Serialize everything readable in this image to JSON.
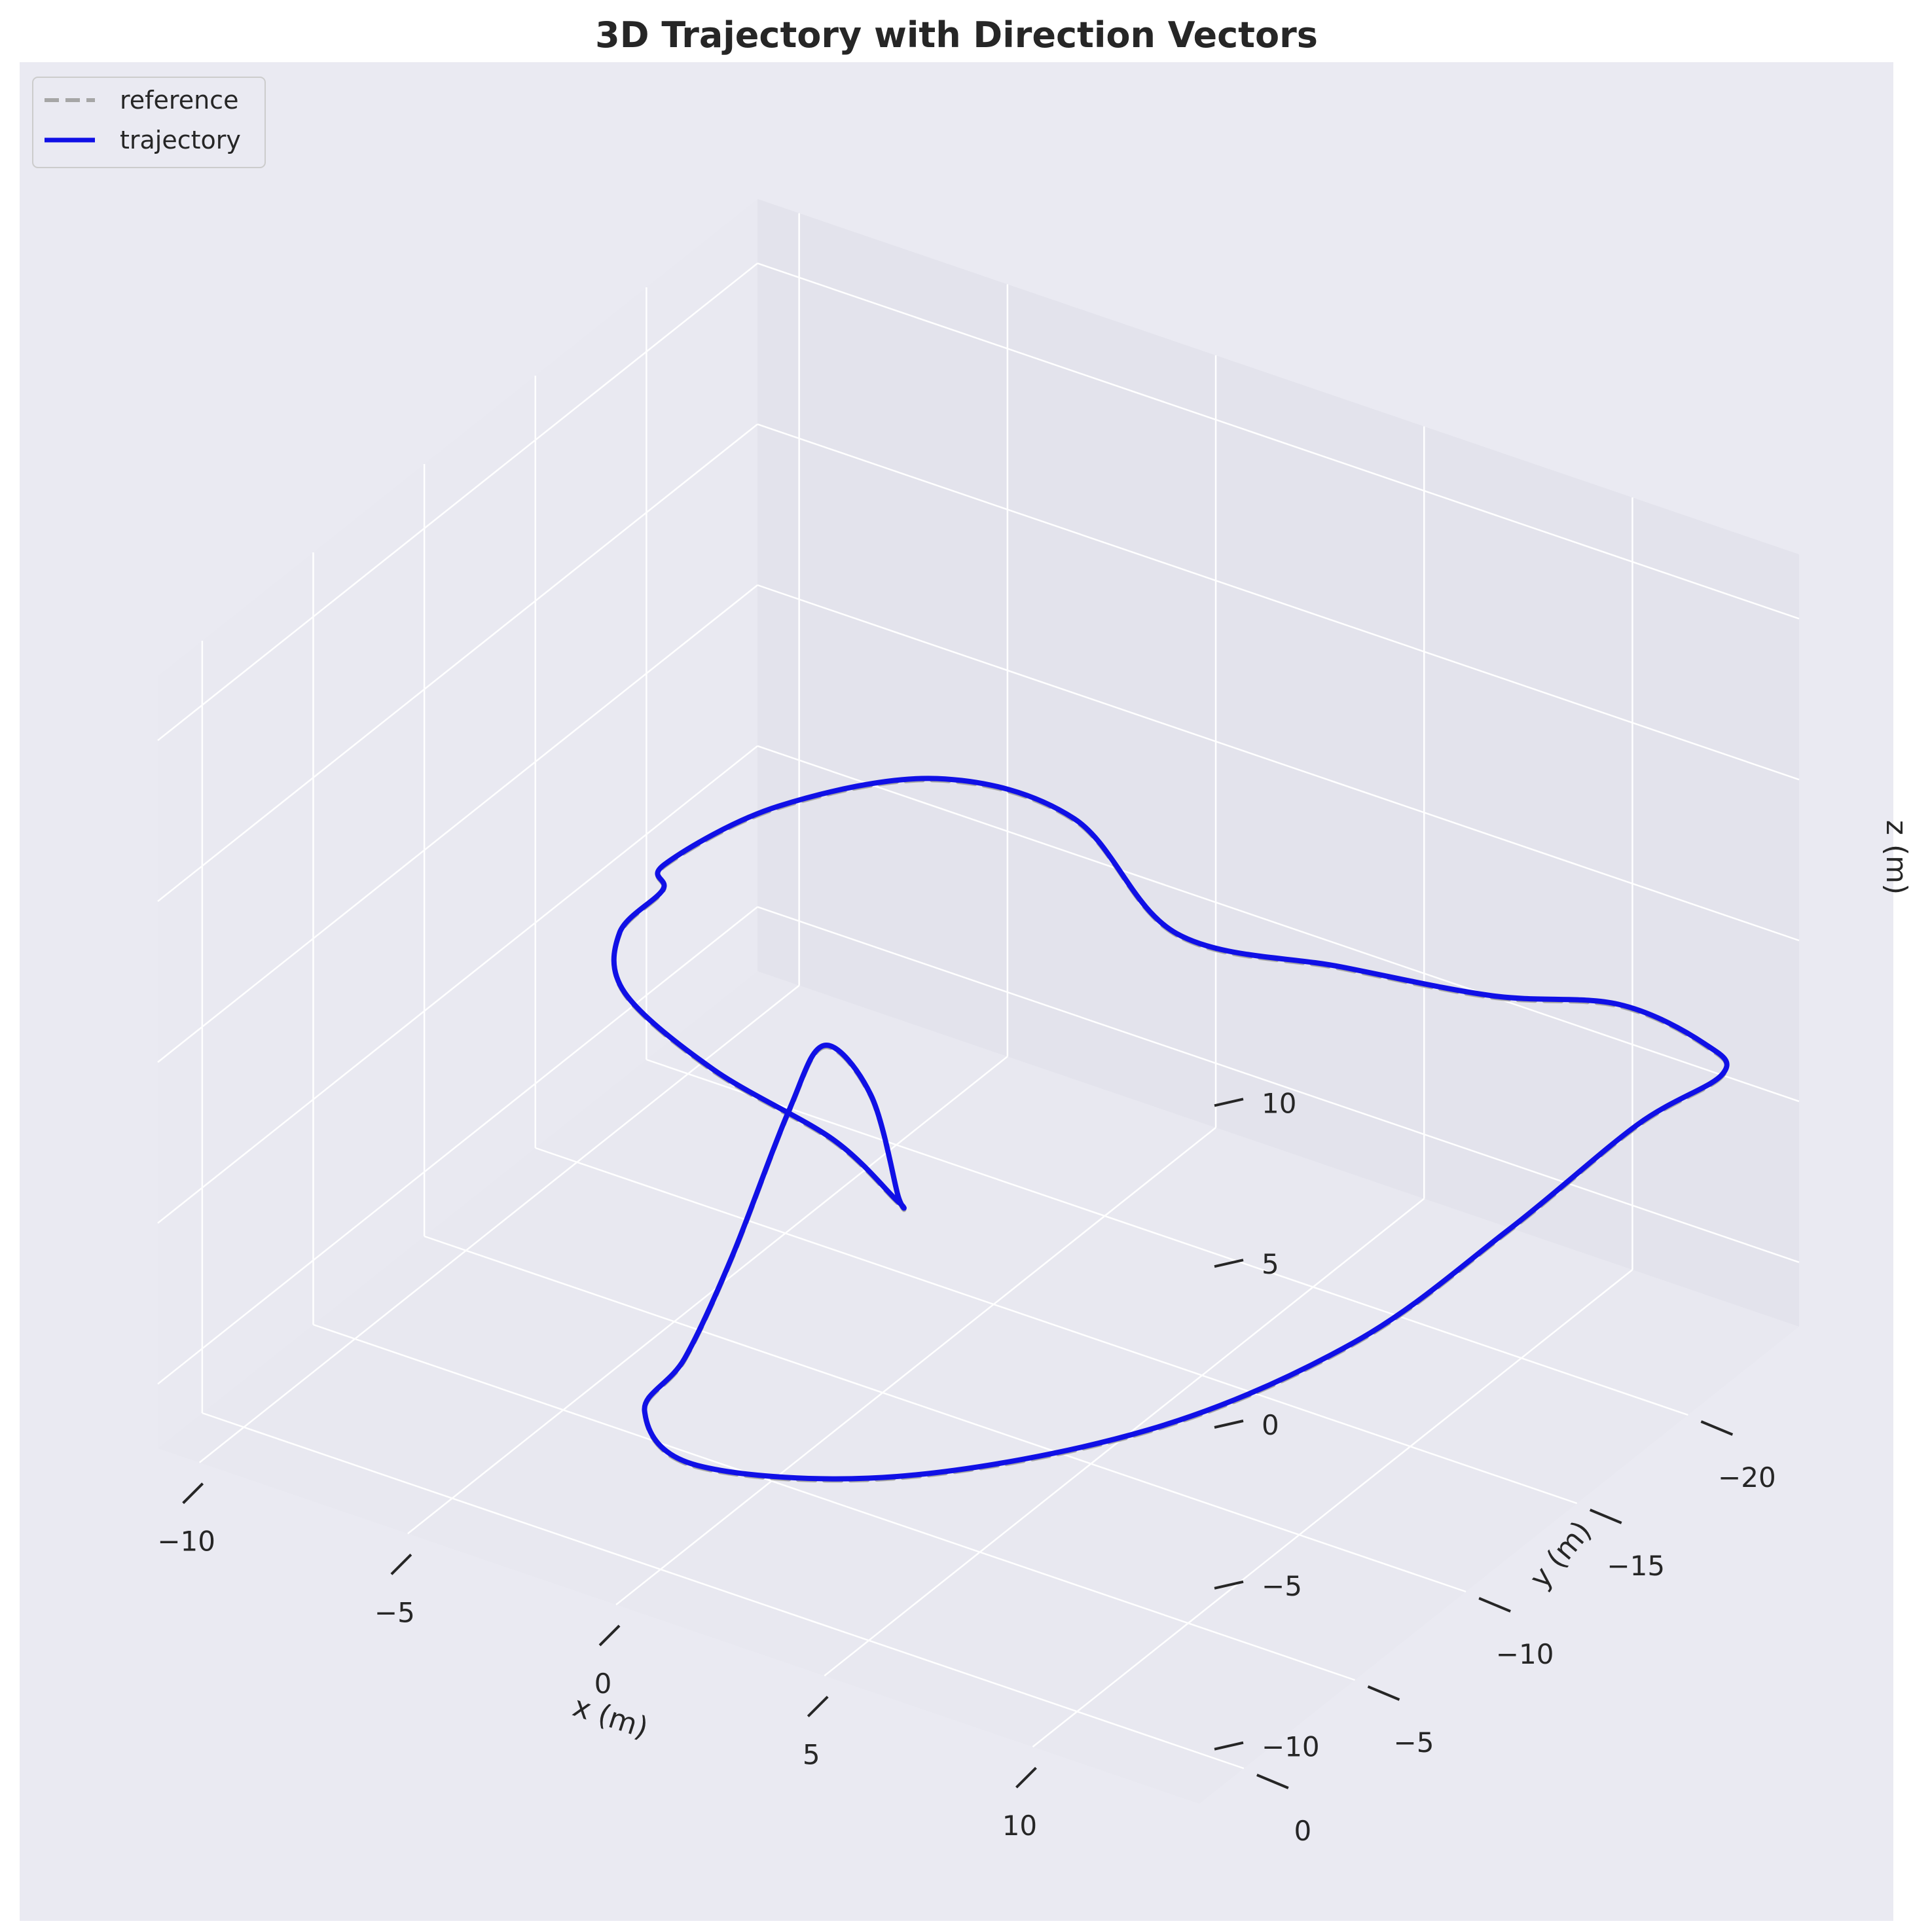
{
  "chart_data": {
    "type": "line",
    "projection": "3d",
    "title": "3D Trajectory with Direction Vectors",
    "xlabel": "x (m)",
    "ylabel": "y (m)",
    "zlabel": "z (m)",
    "xlim": [
      -11,
      14
    ],
    "ylim": [
      -25,
      2
    ],
    "zlim": [
      -12,
      12
    ],
    "xticks": [
      -10,
      -5,
      0,
      5,
      10
    ],
    "yticks": [
      0,
      -5,
      -10,
      -15,
      -20
    ],
    "zticks": [
      10,
      5,
      0,
      -5,
      -10
    ],
    "xtick_labels": [
      "−10",
      "−5",
      "0",
      "5",
      "10"
    ],
    "ytick_labels": [
      "0",
      "−5",
      "−10",
      "−15",
      "−20"
    ],
    "ztick_labels": [
      "10",
      "5",
      "0",
      "−5",
      "−10"
    ],
    "grid": true,
    "legend_position": "top-left",
    "series": [
      {
        "name": "reference",
        "style": "dashed",
        "color": "#a6a6a6",
        "points": [
          [
            6.9,
            -10.3,
            5.1
          ],
          [
            3.9,
            -11.3,
            6.8
          ],
          [
            1.1,
            -10.4,
            7.3
          ],
          [
            -1.6,
            -8.3,
            6.4
          ],
          [
            -3.3,
            -6.4,
            4.9
          ],
          [
            -3.2,
            -6.1,
            4.3
          ],
          [
            -3.7,
            -5.1,
            3.3
          ],
          [
            -3.1,
            -4.2,
            2.2
          ],
          [
            -0.6,
            -3.5,
            1.3
          ],
          [
            2.5,
            -3.1,
            0.7
          ],
          [
            4.7,
            -1.9,
            0.4
          ],
          [
            4.3,
            -2.6,
            0.1
          ],
          [
            1.9,
            -5.9,
            0.3
          ],
          [
            -0.6,
            -8.5,
            -0.7
          ],
          [
            -1.3,
            -8.2,
            -2.9
          ],
          [
            -1.1,
            -5.3,
            -5.7
          ],
          [
            -1.5,
            -3.9,
            -8.3
          ],
          [
            -3.1,
            -5.1,
            -11.3
          ],
          [
            -2.9,
            -7.1,
            -14.0
          ],
          [
            -0.4,
            -11.4,
            -15.6
          ],
          [
            2.9,
            -16.5,
            -15.5
          ],
          [
            5.8,
            -20.3,
            -13.6
          ],
          [
            8.4,
            -22.4,
            -10.1
          ],
          [
            11.2,
            -23.0,
            -5.9
          ],
          [
            13.6,
            -22.3,
            -2.9
          ],
          [
            14.3,
            -20.2,
            -0.5
          ],
          [
            13.5,
            -17.8,
            1.7
          ],
          [
            12.3,
            -14.4,
            3.3
          ],
          [
            9.9,
            -12.1,
            4.4
          ],
          [
            6.9,
            -10.3,
            5.1
          ]
        ]
      },
      {
        "name": "trajectory",
        "style": "solid",
        "color": "#1010e6",
        "points": [
          [
            6.9,
            -10.3,
            5.15
          ],
          [
            3.9,
            -11.3,
            6.85
          ],
          [
            1.1,
            -10.4,
            7.35
          ],
          [
            -1.6,
            -8.3,
            6.45
          ],
          [
            -3.3,
            -6.4,
            4.95
          ],
          [
            -3.2,
            -6.1,
            4.35
          ],
          [
            -3.7,
            -5.1,
            3.35
          ],
          [
            -3.1,
            -4.2,
            2.25
          ],
          [
            -0.6,
            -3.5,
            1.35
          ],
          [
            2.5,
            -3.1,
            0.75
          ],
          [
            4.7,
            -1.9,
            0.45
          ],
          [
            4.3,
            -2.6,
            0.15
          ],
          [
            1.9,
            -5.9,
            0.35
          ],
          [
            -0.6,
            -8.5,
            -0.65
          ],
          [
            -1.3,
            -8.2,
            -2.85
          ],
          [
            -1.1,
            -5.3,
            -5.65
          ],
          [
            -1.5,
            -3.9,
            -8.25
          ],
          [
            -3.1,
            -5.1,
            -11.25
          ],
          [
            -2.9,
            -7.1,
            -13.95
          ],
          [
            -0.4,
            -11.4,
            -15.55
          ],
          [
            2.9,
            -16.5,
            -15.45
          ],
          [
            5.8,
            -20.3,
            -13.55
          ],
          [
            8.4,
            -22.4,
            -10.05
          ],
          [
            11.2,
            -23.0,
            -5.85
          ],
          [
            13.6,
            -22.3,
            -2.85
          ],
          [
            14.3,
            -20.2,
            -0.45
          ],
          [
            13.5,
            -17.8,
            1.75
          ],
          [
            12.3,
            -14.4,
            3.35
          ],
          [
            9.9,
            -12.1,
            4.45
          ],
          [
            6.9,
            -10.3,
            5.15
          ]
        ]
      }
    ]
  },
  "colors": {
    "figure_bg": "#ffffff",
    "axes_bg": "#eaeaf2",
    "pane_bg": "#e5e5ee",
    "grid": "#ffffff",
    "text": "#262626",
    "tick": "#262626"
  }
}
